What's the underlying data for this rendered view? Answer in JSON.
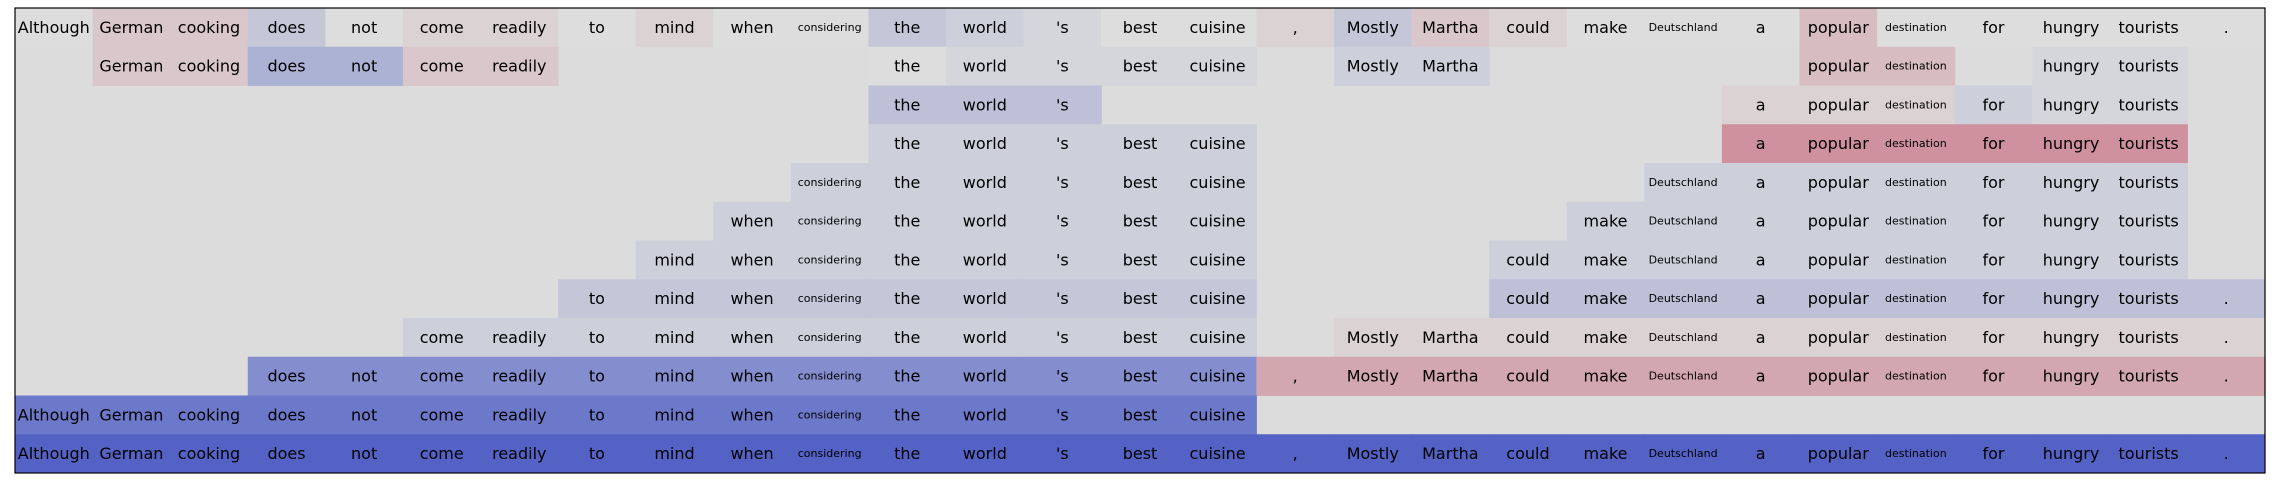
{
  "chart_data": {
    "type": "heatmap",
    "title": "",
    "xlabel": "",
    "ylabel": "",
    "tokens": [
      "Although",
      "German",
      "cooking",
      "does",
      "not",
      "come",
      "readily",
      "to",
      "mind",
      "when",
      "considering",
      "the",
      "world",
      "'s",
      "best",
      "cuisine",
      ",",
      "Mostly",
      "Martha",
      "could",
      "make",
      "Deutschland",
      "a",
      "popular",
      "destination",
      "for",
      "hungry",
      "tourists",
      "."
    ],
    "small_tokens": [
      "considering",
      "Deutschland",
      "destination"
    ],
    "background_color": "#dcdcdc",
    "border_color": "#000000",
    "color_scale": {
      "min": -1,
      "max": 1,
      "min_color": "#3b4cc0",
      "mid_color": "#dddddd",
      "max_color": "#b40426"
    },
    "rows": [
      [
        0.0,
        0.1,
        0.1,
        -0.15,
        0.0,
        0.05,
        0.05,
        0.0,
        0.05,
        0.0,
        0.0,
        -0.15,
        -0.1,
        -0.05,
        0.0,
        0.0,
        0.05,
        -0.15,
        0.1,
        0.05,
        0.0,
        0.0,
        0.0,
        0.15,
        0.0,
        0.0,
        0.0,
        0.0,
        0.0
      ],
      [
        null,
        0.1,
        0.1,
        -0.3,
        -0.3,
        0.1,
        0.1,
        null,
        null,
        null,
        null,
        0.0,
        -0.05,
        -0.05,
        -0.05,
        -0.05,
        null,
        -0.1,
        -0.1,
        null,
        null,
        null,
        null,
        0.15,
        0.15,
        null,
        -0.05,
        -0.05,
        null
      ],
      [
        null,
        null,
        null,
        null,
        null,
        null,
        null,
        null,
        null,
        null,
        null,
        -0.2,
        -0.2,
        -0.2,
        null,
        null,
        null,
        null,
        null,
        null,
        null,
        null,
        0.05,
        0.05,
        0.05,
        -0.1,
        -0.05,
        -0.05,
        null
      ],
      [
        null,
        null,
        null,
        null,
        null,
        null,
        null,
        null,
        null,
        null,
        null,
        -0.1,
        -0.1,
        -0.1,
        -0.1,
        -0.1,
        null,
        null,
        null,
        null,
        null,
        null,
        0.35,
        0.35,
        0.35,
        0.35,
        0.35,
        0.35,
        null
      ],
      [
        null,
        null,
        null,
        null,
        null,
        null,
        null,
        null,
        null,
        null,
        -0.1,
        -0.1,
        -0.1,
        -0.1,
        -0.1,
        -0.1,
        null,
        null,
        null,
        null,
        null,
        -0.1,
        -0.1,
        -0.1,
        -0.1,
        -0.1,
        -0.1,
        -0.1,
        null
      ],
      [
        null,
        null,
        null,
        null,
        null,
        null,
        null,
        null,
        null,
        -0.1,
        -0.1,
        -0.1,
        -0.1,
        -0.1,
        -0.1,
        -0.1,
        null,
        null,
        null,
        null,
        -0.1,
        -0.1,
        -0.1,
        -0.1,
        -0.1,
        -0.1,
        -0.1,
        -0.1,
        null
      ],
      [
        null,
        null,
        null,
        null,
        null,
        null,
        null,
        null,
        -0.1,
        -0.1,
        -0.1,
        -0.1,
        -0.1,
        -0.1,
        -0.1,
        -0.1,
        null,
        null,
        null,
        -0.1,
        -0.1,
        -0.1,
        -0.1,
        -0.1,
        -0.1,
        -0.1,
        -0.1,
        -0.1,
        null
      ],
      [
        null,
        null,
        null,
        null,
        null,
        null,
        null,
        -0.15,
        -0.15,
        -0.15,
        -0.15,
        -0.15,
        -0.15,
        -0.15,
        -0.15,
        -0.15,
        null,
        null,
        null,
        -0.2,
        -0.2,
        -0.2,
        -0.2,
        -0.2,
        -0.2,
        -0.2,
        -0.2,
        -0.2,
        -0.2
      ],
      [
        null,
        null,
        null,
        null,
        null,
        -0.1,
        -0.1,
        -0.1,
        -0.1,
        -0.1,
        -0.1,
        -0.1,
        -0.1,
        -0.1,
        -0.1,
        -0.1,
        null,
        0.05,
        0.05,
        0.05,
        0.05,
        0.05,
        0.05,
        0.05,
        0.05,
        0.05,
        0.05,
        0.05,
        0.05
      ],
      [
        null,
        null,
        null,
        -0.55,
        -0.55,
        -0.55,
        -0.55,
        -0.55,
        -0.55,
        -0.55,
        -0.55,
        -0.55,
        -0.55,
        -0.55,
        -0.55,
        -0.55,
        0.25,
        0.25,
        0.25,
        0.25,
        0.25,
        0.25,
        0.25,
        0.25,
        0.25,
        0.25,
        0.25,
        0.25,
        0.25
      ],
      [
        -0.7,
        -0.7,
        -0.7,
        -0.7,
        -0.7,
        -0.7,
        -0.7,
        -0.7,
        -0.7,
        -0.7,
        -0.7,
        -0.7,
        -0.7,
        -0.7,
        -0.7,
        -0.7,
        null,
        null,
        null,
        null,
        null,
        null,
        null,
        null,
        null,
        null,
        null,
        null,
        null
      ],
      [
        -0.85,
        -0.85,
        -0.85,
        -0.85,
        -0.85,
        -0.85,
        -0.85,
        -0.85,
        -0.85,
        -0.85,
        -0.85,
        -0.85,
        -0.85,
        -0.85,
        -0.85,
        -0.85,
        -0.85,
        -0.85,
        -0.85,
        -0.85,
        -0.85,
        -0.85,
        -0.85,
        -0.85,
        -0.85,
        -0.85,
        -0.85,
        -0.85,
        -0.85
      ]
    ]
  }
}
